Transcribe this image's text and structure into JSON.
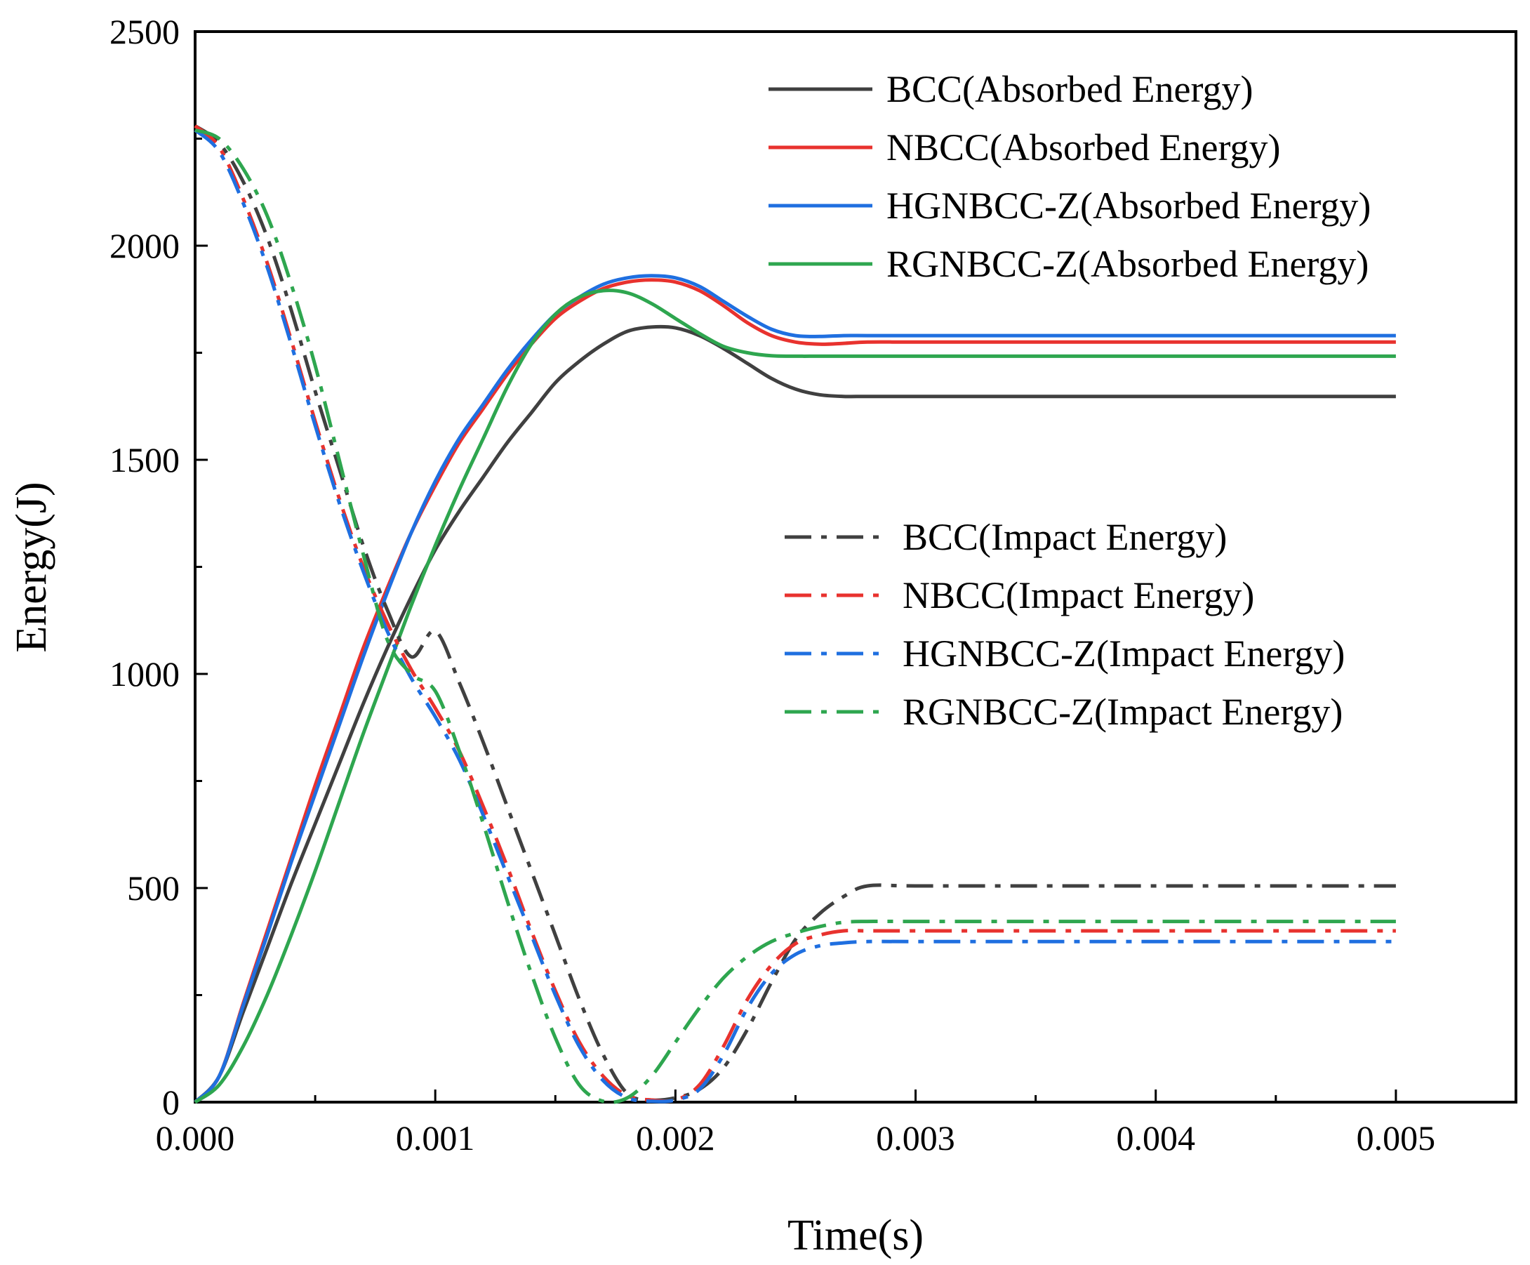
{
  "chart_data": {
    "type": "line",
    "title": "",
    "xlabel": "Time(s)",
    "ylabel": "Energy(J)",
    "xlim": [
      0,
      0.0055
    ],
    "ylim": [
      0,
      2500
    ],
    "x_ticks": [
      0,
      0.001,
      0.002,
      0.003,
      0.004,
      0.005
    ],
    "x_tick_labels": [
      "0.000",
      "0.001",
      "0.002",
      "0.003",
      "0.004",
      "0.005"
    ],
    "y_ticks": [
      0,
      500,
      1000,
      1500,
      2000,
      2500
    ],
    "y_tick_labels": [
      "0",
      "500",
      "1000",
      "1500",
      "2000",
      "2500"
    ],
    "grid": false,
    "legend_position": "top-right and middle-right",
    "series": [
      {
        "name": "BCC(Absorbed Energy)",
        "group": "absorbed",
        "color": "#404040",
        "style": "solid",
        "x": [
          0,
          0.0001,
          0.0002,
          0.0003,
          0.0004,
          0.0005,
          0.0006,
          0.0007,
          0.0008,
          0.0009,
          0.001,
          0.0011,
          0.0012,
          0.0013,
          0.0014,
          0.0015,
          0.0016,
          0.0017,
          0.0018,
          0.0019,
          0.002,
          0.0021,
          0.0022,
          0.0023,
          0.0024,
          0.0025,
          0.0026,
          0.0027,
          0.0028,
          0.003,
          0.0035,
          0.004,
          0.0045,
          0.005
        ],
        "y": [
          0,
          60,
          210,
          360,
          510,
          650,
          790,
          930,
          1060,
          1180,
          1290,
          1380,
          1460,
          1540,
          1610,
          1680,
          1730,
          1770,
          1800,
          1810,
          1808,
          1790,
          1760,
          1725,
          1690,
          1665,
          1652,
          1648,
          1648,
          1648,
          1648,
          1648,
          1648,
          1648
        ]
      },
      {
        "name": "NBCC(Absorbed Energy)",
        "group": "absorbed",
        "color": "#e8322e",
        "style": "solid",
        "x": [
          0,
          0.0001,
          0.0002,
          0.0003,
          0.0004,
          0.0005,
          0.0006,
          0.0007,
          0.0008,
          0.0009,
          0.001,
          0.0011,
          0.0012,
          0.0013,
          0.0014,
          0.0015,
          0.0016,
          0.0017,
          0.0018,
          0.0019,
          0.002,
          0.0021,
          0.0022,
          0.0023,
          0.0024,
          0.0025,
          0.0026,
          0.0027,
          0.0028,
          0.003,
          0.0035,
          0.004,
          0.0045,
          0.005
        ],
        "y": [
          0,
          60,
          230,
          400,
          570,
          740,
          900,
          1060,
          1200,
          1330,
          1440,
          1540,
          1620,
          1700,
          1770,
          1830,
          1870,
          1900,
          1915,
          1920,
          1915,
          1895,
          1860,
          1820,
          1790,
          1775,
          1770,
          1772,
          1775,
          1775,
          1775,
          1775,
          1775,
          1775
        ]
      },
      {
        "name": "HGNBCC-Z(Absorbed Energy)",
        "group": "absorbed",
        "color": "#1f6fe0",
        "style": "solid",
        "x": [
          0,
          0.0001,
          0.0002,
          0.0003,
          0.0004,
          0.0005,
          0.0006,
          0.0007,
          0.0008,
          0.0009,
          0.001,
          0.0011,
          0.0012,
          0.0013,
          0.0014,
          0.0015,
          0.0016,
          0.0017,
          0.0018,
          0.0019,
          0.002,
          0.0021,
          0.0022,
          0.0023,
          0.0024,
          0.0025,
          0.0026,
          0.0027,
          0.0028,
          0.003,
          0.0035,
          0.004,
          0.0045,
          0.005
        ],
        "y": [
          0,
          60,
          225,
          390,
          560,
          720,
          880,
          1040,
          1190,
          1330,
          1450,
          1550,
          1630,
          1710,
          1780,
          1840,
          1880,
          1910,
          1925,
          1930,
          1925,
          1905,
          1870,
          1835,
          1805,
          1790,
          1788,
          1790,
          1790,
          1790,
          1790,
          1790,
          1790,
          1790
        ]
      },
      {
        "name": "RGNBCC-Z(Absorbed Energy)",
        "group": "absorbed",
        "color": "#2ea64f",
        "style": "solid",
        "x": [
          0,
          0.0001,
          0.0002,
          0.0003,
          0.0004,
          0.0005,
          0.0006,
          0.0007,
          0.0008,
          0.0009,
          0.001,
          0.0011,
          0.0012,
          0.0013,
          0.0014,
          0.0015,
          0.0016,
          0.0017,
          0.0018,
          0.0019,
          0.002,
          0.0021,
          0.0022,
          0.0023,
          0.0024,
          0.0025,
          0.0026,
          0.0027,
          0.0028,
          0.003,
          0.0035,
          0.004,
          0.0045,
          0.005
        ],
        "y": [
          0,
          40,
          130,
          250,
          390,
          540,
          700,
          860,
          1010,
          1160,
          1300,
          1430,
          1550,
          1670,
          1770,
          1840,
          1880,
          1895,
          1890,
          1865,
          1830,
          1795,
          1765,
          1750,
          1743,
          1742,
          1742,
          1742,
          1742,
          1742,
          1742,
          1742,
          1742,
          1742
        ]
      },
      {
        "name": "BCC(Impact Energy)",
        "group": "impact",
        "color": "#404040",
        "style": "dashdot",
        "x": [
          0,
          0.0001,
          0.0002,
          0.0003,
          0.0004,
          0.0005,
          0.0006,
          0.0007,
          0.0008,
          0.0009,
          0.001,
          0.0011,
          0.0012,
          0.0013,
          0.0014,
          0.0015,
          0.0016,
          0.0017,
          0.0018,
          0.0019,
          0.002,
          0.0021,
          0.0022,
          0.0023,
          0.0024,
          0.0025,
          0.0026,
          0.0027,
          0.0028,
          0.003,
          0.0035,
          0.004,
          0.0045,
          0.005
        ],
        "y": [
          2280,
          2240,
          2150,
          2020,
          1850,
          1660,
          1480,
          1300,
          1150,
          1040,
          1100,
          980,
          840,
          690,
          540,
          390,
          240,
          110,
          20,
          5,
          10,
          30,
          80,
          170,
          280,
          380,
          440,
          480,
          505,
          505,
          505,
          505,
          505,
          505
        ]
      },
      {
        "name": "NBCC(Impact Energy)",
        "group": "impact",
        "color": "#e8322e",
        "style": "dashdot",
        "x": [
          0,
          0.0001,
          0.0002,
          0.0003,
          0.0004,
          0.0005,
          0.0006,
          0.0007,
          0.0008,
          0.0009,
          0.001,
          0.0011,
          0.0012,
          0.0013,
          0.0014,
          0.0015,
          0.0016,
          0.0017,
          0.0018,
          0.0019,
          0.002,
          0.0021,
          0.0022,
          0.0023,
          0.0024,
          0.0025,
          0.0026,
          0.0027,
          0.0028,
          0.003,
          0.0035,
          0.004,
          0.0045,
          0.005
        ],
        "y": [
          2280,
          2230,
          2110,
          1960,
          1780,
          1590,
          1410,
          1250,
          1120,
          1010,
          920,
          820,
          690,
          550,
          400,
          260,
          140,
          60,
          15,
          5,
          5,
          40,
          130,
          240,
          320,
          370,
          390,
          400,
          400,
          400,
          400,
          400,
          400,
          400
        ]
      },
      {
        "name": "HGNBCC-Z(Impact Energy)",
        "group": "impact",
        "color": "#1f6fe0",
        "style": "dashdot",
        "x": [
          0,
          0.0001,
          0.0002,
          0.0003,
          0.0004,
          0.0005,
          0.0006,
          0.0007,
          0.0008,
          0.0009,
          0.001,
          0.0011,
          0.0012,
          0.0013,
          0.0014,
          0.0015,
          0.0016,
          0.0017,
          0.0018,
          0.0019,
          0.002,
          0.0021,
          0.0022,
          0.0023,
          0.0024,
          0.0025,
          0.0026,
          0.0027,
          0.0028,
          0.003,
          0.0035,
          0.004,
          0.0045,
          0.005
        ],
        "y": [
          2270,
          2220,
          2100,
          1950,
          1770,
          1580,
          1400,
          1240,
          1100,
          990,
          900,
          800,
          670,
          530,
          390,
          250,
          130,
          50,
          10,
          2,
          5,
          30,
          110,
          220,
          300,
          345,
          365,
          372,
          375,
          375,
          375,
          375,
          375,
          375
        ]
      },
      {
        "name": "RGNBCC-Z(Impact Energy)",
        "group": "impact",
        "color": "#2ea64f",
        "style": "dashdot",
        "x": [
          0,
          0.0001,
          0.0002,
          0.0003,
          0.0004,
          0.0005,
          0.0006,
          0.0007,
          0.0008,
          0.0009,
          0.001,
          0.0011,
          0.0012,
          0.0013,
          0.0014,
          0.0015,
          0.0016,
          0.0017,
          0.0018,
          0.0019,
          0.002,
          0.0021,
          0.0022,
          0.0023,
          0.0024,
          0.0025,
          0.0026,
          0.0027,
          0.0028,
          0.003,
          0.0035,
          0.004,
          0.0045,
          0.005
        ],
        "y": [
          2270,
          2250,
          2180,
          2070,
          1910,
          1720,
          1500,
          1280,
          1080,
          1000,
          960,
          820,
          650,
          470,
          300,
          150,
          40,
          2,
          10,
          60,
          140,
          220,
          290,
          340,
          375,
          395,
          410,
          420,
          422,
          422,
          422,
          422,
          422,
          422
        ]
      }
    ]
  }
}
